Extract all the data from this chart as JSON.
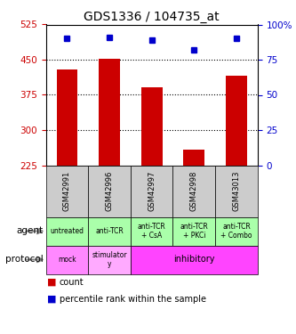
{
  "title": "GDS1336 / 104735_at",
  "samples": [
    "GSM42991",
    "GSM42996",
    "GSM42997",
    "GSM42998",
    "GSM43013"
  ],
  "counts": [
    430,
    452,
    392,
    258,
    415
  ],
  "percentiles": [
    90,
    91,
    89,
    82,
    90
  ],
  "ylim_left": [
    225,
    525
  ],
  "ylim_right": [
    0,
    100
  ],
  "yticks_left": [
    225,
    300,
    375,
    450,
    525
  ],
  "yticks_right": [
    0,
    25,
    50,
    75,
    100
  ],
  "bar_color": "#cc0000",
  "dot_color": "#0000cc",
  "agent_labels": [
    "untreated",
    "anti-TCR",
    "anti-TCR\n+ CsA",
    "anti-TCR\n+ PKCi",
    "anti-TCR\n+ Combo"
  ],
  "protocol_merged": [
    {
      "label": "mock",
      "span": 1,
      "color": "#ff88ff"
    },
    {
      "label": "stimulator\ny",
      "span": 1,
      "color": "#ffaaff"
    },
    {
      "label": "inhibitory",
      "span": 3,
      "color": "#ff44ff"
    }
  ],
  "sample_bg_color": "#cccccc",
  "left_color": "#cc0000",
  "right_color": "#0000cc",
  "agent_color": "#aaffaa",
  "grid_yticks": [
    300,
    375,
    450
  ]
}
